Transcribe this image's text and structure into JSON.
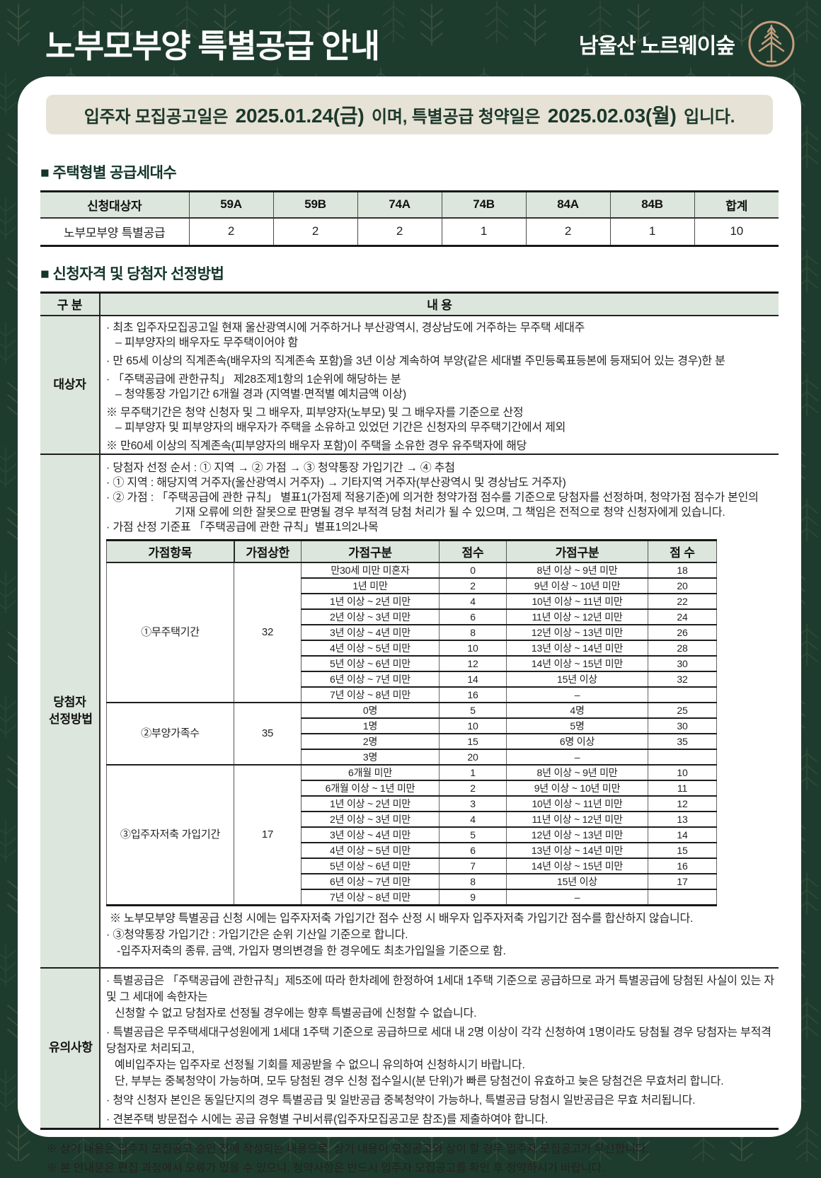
{
  "colors": {
    "page_bg": "#1e3c2e",
    "card_bg": "#ffffff",
    "notice_bg": "#e7e2d6",
    "table_header_bg": "#dce6dc",
    "accent_text": "#13352a",
    "logo_tan": "#c79e7d"
  },
  "header": {
    "title": "노부모부양 특별공급 안내",
    "brand": "남울산 노르웨이숲",
    "logo_icon": "pine-tree-icon"
  },
  "notice": {
    "prefix": "입주자 모집공고일은 ",
    "date1": "2025.01.24(금)",
    "middle": " 이며, 특별공급 청약일은 ",
    "date2": "2025.02.03(월)",
    "suffix": " 입니다."
  },
  "supply_section": {
    "title": "■ 주택형별 공급세대수",
    "table": {
      "headers": [
        "신청대상자",
        "59A",
        "59B",
        "74A",
        "74B",
        "84A",
        "84B",
        "합계"
      ],
      "rows": [
        [
          "노부모부양 특별공급",
          "2",
          "2",
          "2",
          "1",
          "2",
          "1",
          "10"
        ]
      ]
    }
  },
  "criteria_section": {
    "title": "■ 신청자격 및 당첨자 선정방법",
    "col_headers": [
      "구 분",
      "내 용"
    ],
    "rows": [
      {
        "label": "대상자",
        "lines": [
          "· 최초 입주자모집공고일 현재 울산광역시에 거주하거나 부산광역시, 경상남도에 거주하는 무주택 세대주",
          "– 피부양자의 배우자도 무주택이어야 함",
          "· 만 65세 이상의 직계존속(배우자의 직계존속 포함)을 3년 이상 계속하여 부양(같은 세대별 주민등록표등본에 등재되어 있는 경우)한 분",
          "· 「주택공급에 관한규칙」 제28조제1항의 1순위에 해당하는 분",
          "– 청약통장 가입기간 6개월 경과 (지역별·면적별 예치금액 이상)",
          "※ 무주택기간은 청약 신청자 및 그 배우자, 피부양자(노부모) 및 그 배우자를 기준으로 산정",
          "– 피부양자 및 피부양자의 배우자가 주택을 소유하고 있었던 기간은 신청자의 무주택기간에서 제외",
          "※ 만60세 이상의 직계존속(피부양자의 배우자 포함)이 주택을 소유한 경우 유주택자에 해당"
        ]
      },
      {
        "label": "당첨자 선정방법",
        "intro_lines": [
          "· 당첨자 선정 순서 : ① 지역 → ② 가점 → ③ 청약통장 가입기간 → ④ 추첨",
          "· ① 지역 : 해당지역 거주자(울산광역시 거주자) → 기타지역 거주자(부산광역시 및 경상남도 거주자)",
          "· ② 가점 : 「주택공급에 관한 규칙」 별표1(가점제 적용기준)에 의거한 청약가점 점수를 기준으로 당첨자를 선정하며, 청약가점 점수가 본인의",
          "기재 오류에 의한 잘못으로 판명될 경우 부적격 당첨 처리가 될 수 있으며, 그 책임은 전적으로 청약 신청자에게 있습니다.",
          "· 가점 산정 기준표 「주택공급에 관한 규칙」별표1의2나목"
        ],
        "note_lines": [
          "※ 노부모부양 특별공급 신청 시에는 입주자저축 가입기간 점수 산정 시 배우자 입주자저축 가입기간 점수를 합산하지 않습니다.",
          "· ③청약통장 가입기간 : 가입기간은 순위 기산일 기준으로 합니다.",
          "-입주자저축의 종류, 금액, 가입자 명의변경을 한 경우에도 최초가입일을 기준으로 함."
        ]
      },
      {
        "label": "유의사항",
        "lines": [
          "· 특별공급은 「주택공급에 관한규칙」제5조에 따라 한차례에 한정하여 1세대 1주택 기준으로 공급하므로 과거 특별공급에 당첨된 사실이 있는 자 및 그 세대에 속한자는",
          "신청할 수 없고 당첨자로 선정될 경우에는 향후 특별공급에 신청할 수 없습니다.",
          "· 특별공급은 무주택세대구성원에게 1세대 1주택 기준으로 공급하므로 세대 내 2명 이상이 각각 신청하여 1명이라도 당첨될 경우 당첨자는 부적격당첨자로 처리되고,",
          "예비입주자는 입주자로 선정될 기회를 제공받을 수 없으니 유의하여 신청하시기 바랍니다.",
          "단, 부부는 중복청약이 가능하며, 모두 당첨된 경우 신청 접수일시(분 단위)가 빠른 당첨건이 유효하고 늦은 당첨건은 무효처리 합니다.",
          "· 청약 신청자 본인은 동일단지의 경우 특별공급 및 일반공급 중복청약이 가능하나, 특별공급 당첨시 일반공급은 무효 처리됩니다.",
          "· 견본주택 방문접수 시에는 공급 유형별 구비서류(입주자모집공고문 참조)를 제출하여야 합니다."
        ]
      }
    ]
  },
  "score_table": {
    "headers": [
      "가점항목",
      "가점상한",
      "가점구분",
      "점수",
      "가점구분",
      "점 수"
    ],
    "groups": [
      {
        "item": "①무주택기간",
        "max": "32",
        "rows": [
          [
            "만30세 미만 미혼자",
            "0",
            "8년 이상 ~ 9년 미만",
            "18"
          ],
          [
            "1년 미만",
            "2",
            "9년 이상 ~ 10년 미만",
            "20"
          ],
          [
            "1년 이상 ~ 2년 미만",
            "4",
            "10년 이상 ~ 11년 미만",
            "22"
          ],
          [
            "2년 이상 ~ 3년 미만",
            "6",
            "11년 이상 ~ 12년 미만",
            "24"
          ],
          [
            "3년 이상 ~ 4년 미만",
            "8",
            "12년 이상 ~ 13년 미만",
            "26"
          ],
          [
            "4년 이상 ~ 5년 미만",
            "10",
            "13년 이상 ~ 14년 미만",
            "28"
          ],
          [
            "5년 이상 ~ 6년 미만",
            "12",
            "14년 이상 ~ 15년 미만",
            "30"
          ],
          [
            "6년 이상 ~ 7년 미만",
            "14",
            "15년 이상",
            "32"
          ],
          [
            "7년 이상 ~ 8년 미만",
            "16",
            "–",
            ""
          ]
        ]
      },
      {
        "item": "②부양가족수",
        "max": "35",
        "rows": [
          [
            "0명",
            "5",
            "4명",
            "25"
          ],
          [
            "1명",
            "10",
            "5명",
            "30"
          ],
          [
            "2명",
            "15",
            "6명 이상",
            "35"
          ],
          [
            "3명",
            "20",
            "–",
            ""
          ]
        ]
      },
      {
        "item": "③입주자저축 가입기간",
        "max": "17",
        "rows": [
          [
            "6개월 미만",
            "1",
            "8년 이상 ~ 9년 미만",
            "10"
          ],
          [
            "6개월 이상 ~ 1년 미만",
            "2",
            "9년 이상 ~ 10년 미만",
            "11"
          ],
          [
            "1년 이상 ~ 2년 미만",
            "3",
            "10년 이상 ~ 11년 미만",
            "12"
          ],
          [
            "2년 이상 ~ 3년 미만",
            "4",
            "11년 이상 ~ 12년 미만",
            "13"
          ],
          [
            "3년 이상 ~ 4년 미만",
            "5",
            "12년 이상 ~ 13년 미만",
            "14"
          ],
          [
            "4년 이상 ~ 5년 미만",
            "6",
            "13년 이상 ~ 14년 미만",
            "15"
          ],
          [
            "5년 이상 ~ 6년 미만",
            "7",
            "14년 이상 ~ 15년 미만",
            "16"
          ],
          [
            "6년 이상 ~ 7년 미만",
            "8",
            "15년 이상",
            "17"
          ],
          [
            "7년 이상 ~ 8년 미만",
            "9",
            "–",
            ""
          ]
        ]
      }
    ]
  },
  "footer_notes": [
    "※ 상기 내용은 입주자 모집공고 승인 전에 작성되는 내용으로, 상기 내용이 모집공고와 상이 할 경우 입주자 모집공고가 우선합니다.",
    "※ 본 안내문은 편집 과정에서 오류가 있을 수 있으니, 청약사항은 반드시 입주자 모집공고를 확인 후 청약하시기 바랍니다."
  ]
}
